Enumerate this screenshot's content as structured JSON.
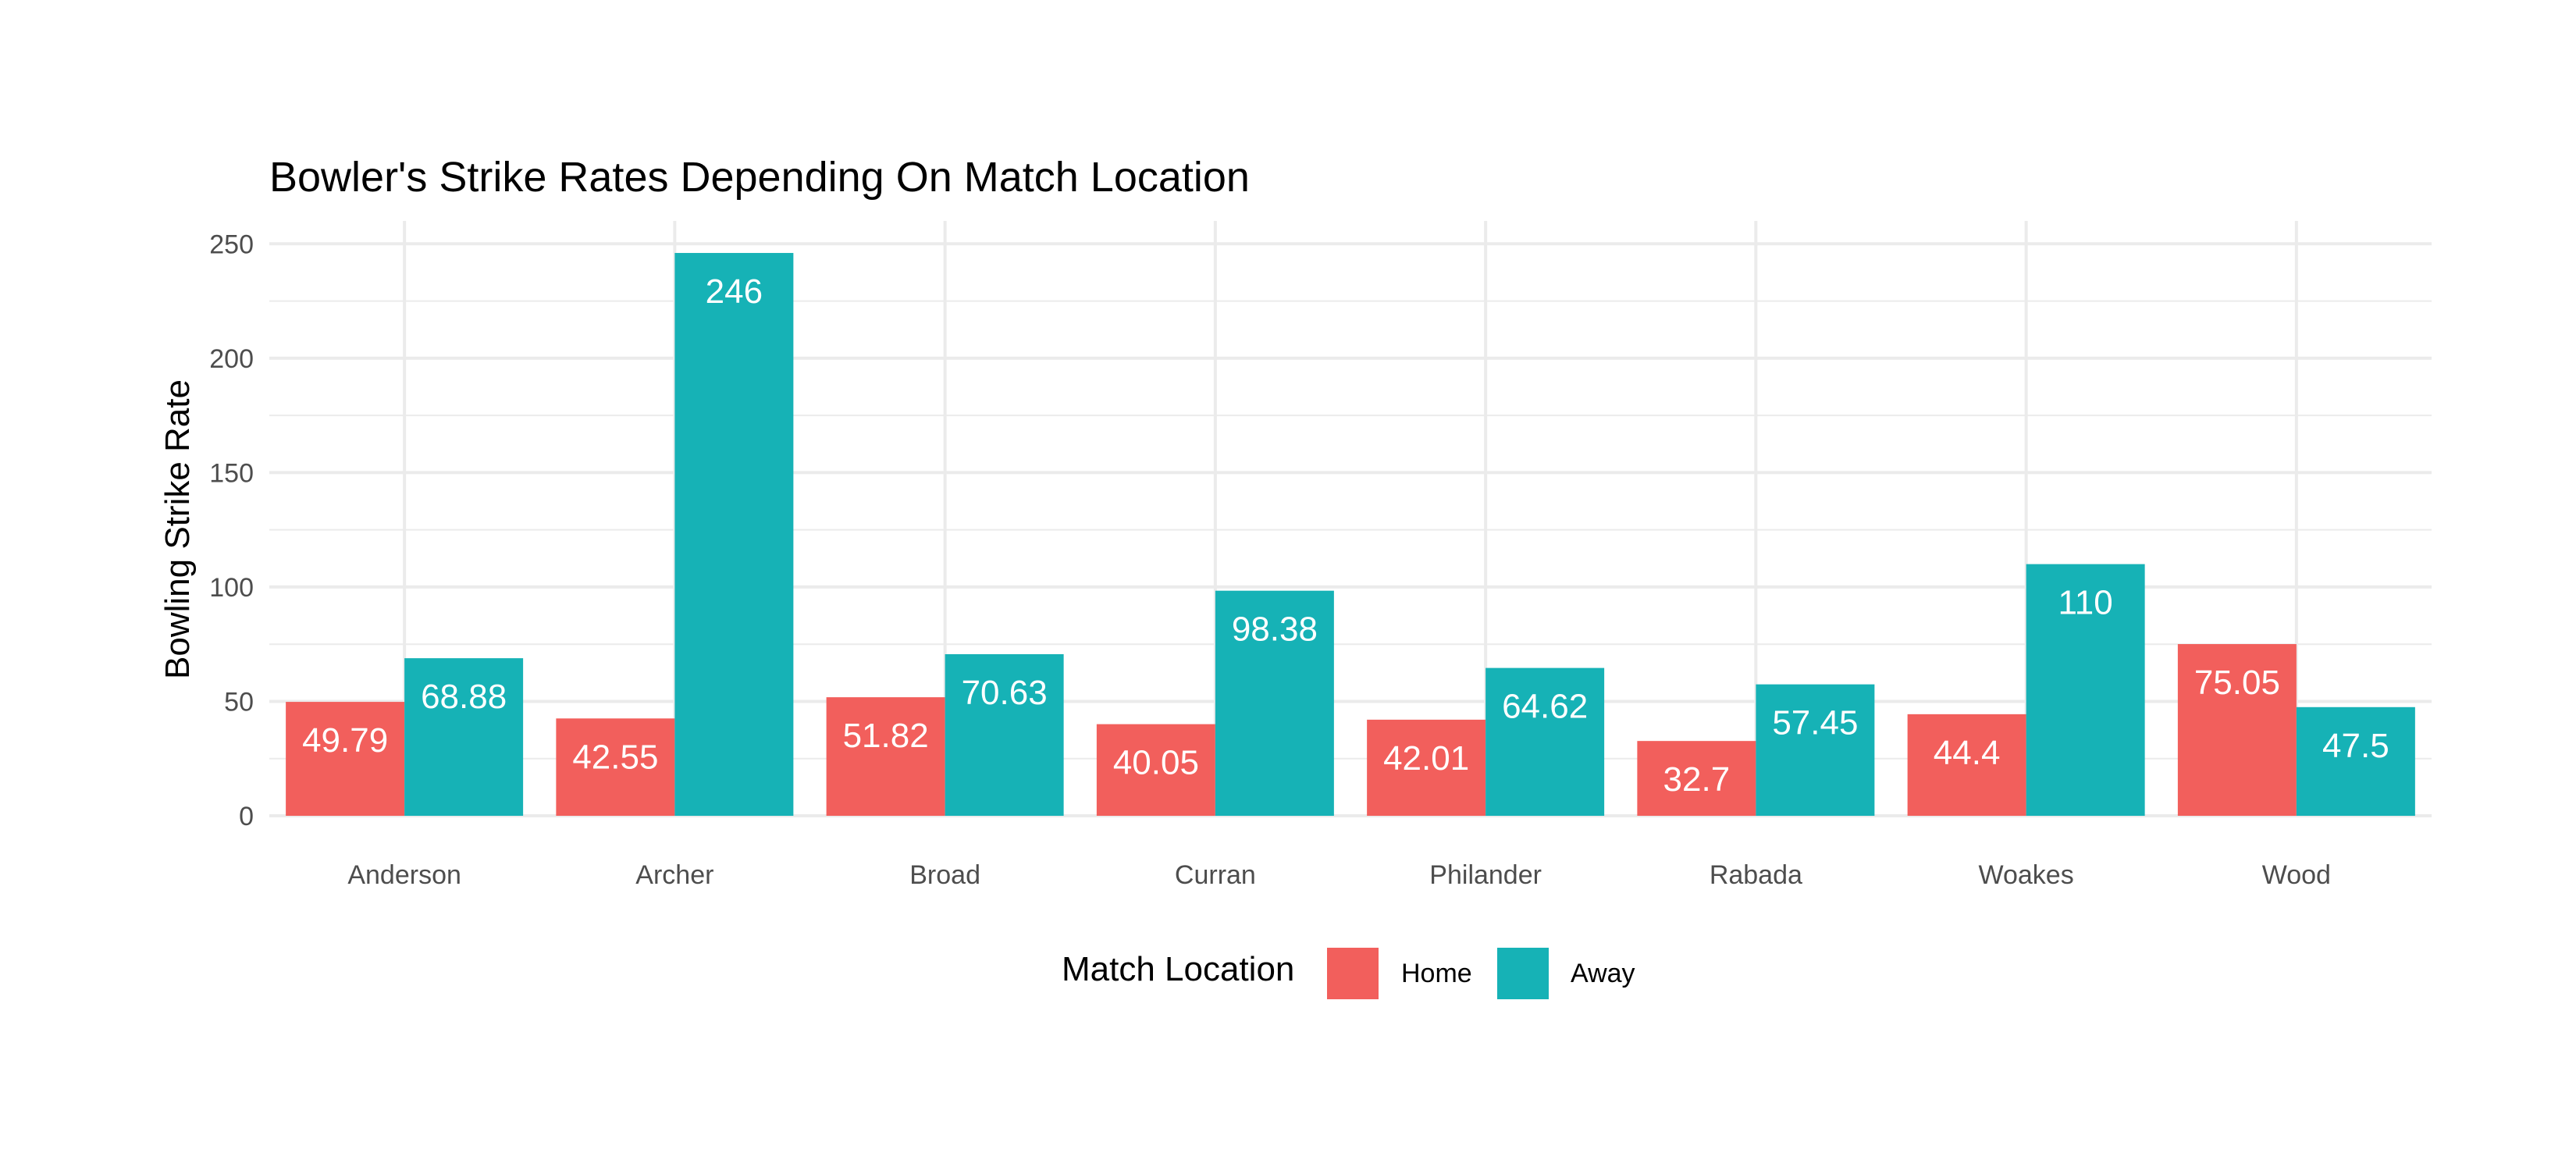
{
  "chart_data": {
    "type": "bar",
    "title": "Bowler's Strike Rates Depending On Match Location",
    "xlabel": "",
    "ylabel": "Bowling Strike Rate",
    "ylim": [
      0,
      260
    ],
    "y_ticks": [
      "0",
      "50",
      "100",
      "150",
      "200",
      "250"
    ],
    "grid": true,
    "categories": [
      "Anderson",
      "Archer",
      "Broad",
      "Curran",
      "Philander",
      "Rabada",
      "Woakes",
      "Wood"
    ],
    "series": [
      {
        "name": "Home",
        "color": "#f25f5c",
        "values": [
          49.79,
          42.55,
          51.82,
          40.05,
          42.01,
          32.7,
          44.4,
          75.05
        ]
      },
      {
        "name": "Away",
        "color": "#16b2b6",
        "values": [
          68.88,
          246,
          70.63,
          98.38,
          64.62,
          57.45,
          110,
          47.5
        ]
      }
    ],
    "legend": {
      "title": "Match Location",
      "placement": "bottom"
    }
  }
}
